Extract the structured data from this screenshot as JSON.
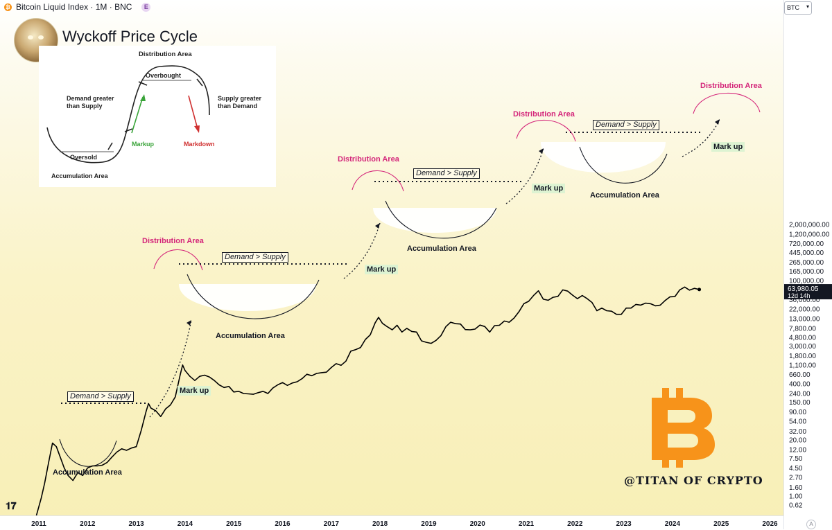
{
  "header": {
    "title": "Bitcoin Liquid Index · 1M · BNC",
    "badge": "E",
    "currency": "BTC"
  },
  "chart_data": {
    "type": "line",
    "title": "Wyckoff Price Cycle",
    "yscale": "log",
    "ylim": [
      0.5,
      2500000
    ],
    "xlim": [
      2010.8,
      2026.2
    ],
    "x_ticks": [
      "2011",
      "2012",
      "2013",
      "2014",
      "2015",
      "2016",
      "2017",
      "2018",
      "2019",
      "2020",
      "2021",
      "2022",
      "2023",
      "2024",
      "2025",
      "2026"
    ],
    "y_ticks": [
      "2,000,000.00",
      "1,200,000.00",
      "720,000.00",
      "445,000.00",
      "265,000.00",
      "165,000.00",
      "100,000.00",
      "60,000.00",
      "36,000.00",
      "22,000.00",
      "13,000.00",
      "7,800.00",
      "4,800.00",
      "3,000.00",
      "1,800.00",
      "1,100.00",
      "660.00",
      "400.00",
      "240.00",
      "150.00",
      "90.00",
      "54.00",
      "32.00",
      "20.00",
      "12.00",
      "7.50",
      "4.50",
      "2.70",
      "1.60",
      "1.00",
      "0.62"
    ],
    "current_price": "63,980.05",
    "countdown": "12d 14h",
    "series": [
      {
        "x": [
          2010.95,
          2011.05,
          2011.12,
          2011.2,
          2011.28,
          2011.36,
          2011.44,
          2011.52,
          2011.6,
          2011.7,
          2011.8,
          2011.9,
          2012.0,
          2012.1,
          2012.2,
          2012.3,
          2012.4,
          2012.5,
          2012.6,
          2012.7,
          2012.8,
          2012.9,
          2013.0,
          2013.1,
          2013.2,
          2013.25,
          2013.3,
          2013.4,
          2013.5,
          2013.6,
          2013.7,
          2013.8,
          2013.9,
          2013.95,
          2014.0,
          2014.1,
          2014.2,
          2014.3,
          2014.4,
          2014.5,
          2014.6,
          2014.7,
          2014.8,
          2014.9,
          2015.0,
          2015.1,
          2015.2,
          2015.3,
          2015.4,
          2015.5,
          2015.6,
          2015.7,
          2015.8,
          2015.9,
          2016.0,
          2016.1,
          2016.2,
          2016.3,
          2016.4,
          2016.5,
          2016.6,
          2016.7,
          2016.8,
          2016.9,
          2017.0,
          2017.1,
          2017.2,
          2017.3,
          2017.4,
          2017.5,
          2017.6,
          2017.7,
          2017.8,
          2017.9,
          2017.97,
          2018.05,
          2018.15,
          2018.25,
          2018.35,
          2018.45,
          2018.55,
          2018.65,
          2018.75,
          2018.85,
          2018.95,
          2019.05,
          2019.15,
          2019.25,
          2019.35,
          2019.45,
          2019.55,
          2019.65,
          2019.75,
          2019.85,
          2019.95,
          2020.05,
          2020.15,
          2020.25,
          2020.35,
          2020.45,
          2020.55,
          2020.65,
          2020.75,
          2020.85,
          2020.95,
          2021.05,
          2021.15,
          2021.25,
          2021.35,
          2021.45,
          2021.55,
          2021.65,
          2021.75,
          2021.85,
          2021.95,
          2022.05,
          2022.15,
          2022.25,
          2022.35,
          2022.45,
          2022.55,
          2022.65,
          2022.75,
          2022.85,
          2022.95,
          2023.05,
          2023.15,
          2023.25,
          2023.35,
          2023.45,
          2023.55,
          2023.65,
          2023.75,
          2023.85,
          2023.95,
          2024.05,
          2024.15,
          2024.25,
          2024.35,
          2024.45,
          2024.55
        ],
        "y": [
          0.3,
          0.9,
          2.0,
          6.0,
          17.0,
          14.0,
          8.0,
          4.5,
          3.0,
          2.3,
          3.5,
          3.0,
          4.5,
          5.0,
          5.0,
          5.2,
          6.0,
          8.0,
          10.5,
          12.5,
          11.5,
          13.0,
          14.0,
          33.0,
          92.0,
          140.0,
          110.0,
          95.0,
          70.0,
          105.0,
          130.0,
          200.0,
          650.0,
          1100.0,
          820.0,
          600.0,
          480.0,
          600.0,
          640.0,
          580.0,
          480.0,
          380.0,
          330.0,
          350.0,
          260.0,
          270.0,
          240.0,
          235.0,
          230.0,
          250.0,
          270.0,
          240.0,
          320.0,
          380.0,
          430.0,
          370.0,
          420.0,
          450.0,
          530.0,
          670.0,
          620.0,
          700.0,
          730.0,
          750.0,
          960.0,
          1180.0,
          1080.0,
          1350.0,
          2300.0,
          2500.0,
          2800.0,
          4300.0,
          5500.0,
          10500.0,
          14000.0,
          10200.0,
          8500.0,
          7200.0,
          9200.0,
          6400.0,
          7800.0,
          6600.0,
          6400.0,
          4000.0,
          3700.0,
          3500.0,
          4100.0,
          5300.0,
          8500.0,
          10800.0,
          10000.0,
          9800.0,
          7300.0,
          7200.0,
          7500.0,
          9300.0,
          8600.0,
          6400.0,
          9000.0,
          9200.0,
          11500.0,
          10800.0,
          13500.0,
          19000.0,
          29000.0,
          33000.0,
          45000.0,
          58000.0,
          37000.0,
          35000.0,
          41000.0,
          43000.0,
          61000.0,
          57000.0,
          46000.0,
          38000.0,
          45000.0,
          38000.0,
          31000.0,
          20000.0,
          23000.0,
          20000.0,
          19500.0,
          16500.0,
          16500.0,
          23000.0,
          23000.0,
          28000.0,
          27000.0,
          30000.0,
          29000.0,
          26000.0,
          27000.0,
          34500.0,
          42000.0,
          42500.0,
          61000.0,
          71000.0,
          60000.0,
          66000.0,
          62000.0
        ]
      }
    ]
  },
  "inset": {
    "title": "Wyckoff Price Cycle",
    "distribution": "Distribution Area",
    "overbought": "Overbought",
    "demand_greater_1": "Demand greater",
    "demand_greater_2": "than Supply",
    "supply_greater_1": "Supply greater",
    "supply_greater_2": "than Demand",
    "markup": "Markup",
    "markdown": "Markdown",
    "oversold": "Oversold",
    "accumulation": "Accumulation Area"
  },
  "annotations": {
    "accumulation": "Accumulation Area",
    "distribution": "Distribution Area",
    "markup": "Mark up",
    "demand": "Demand > Supply"
  },
  "watermark": "@TITAN OF CRYPTO",
  "colors": {
    "distribution": "#d4267a",
    "markup_bg": "#ddf3d2",
    "bitcoin_orange": "#f7931a",
    "line": "#000000",
    "green_arrow": "#3aa43a",
    "red_arrow": "#d03030"
  }
}
